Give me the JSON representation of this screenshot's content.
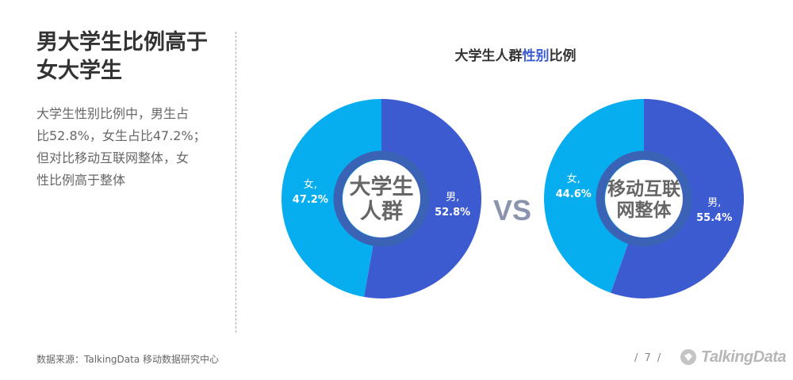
{
  "headline": {
    "line1": "男大学生比例高于",
    "line2": "女大学生"
  },
  "description": [
    "大学生性别比例中，男生占",
    "比52.8%，女生占比47.2%；",
    "但对比移动互联网整体，女",
    "性比例高于整体"
  ],
  "chart_title": {
    "prefix": "大学生人群",
    "highlight": "性别",
    "suffix": "比例"
  },
  "vs_label": "VS",
  "colors": {
    "male": "#3d5bd0",
    "female": "#06aeef",
    "ring": "#3a62b5",
    "vs": "#8c94ad",
    "center_text": "#666666",
    "highlight": "#3a5bd2"
  },
  "chart_data": [
    {
      "type": "pie",
      "center_label": [
        "大学生",
        "人群"
      ],
      "slices": [
        {
          "name": "男",
          "value": 52.8,
          "label": "52.8%"
        },
        {
          "name": "女",
          "value": 47.2,
          "label": "47.2%"
        }
      ]
    },
    {
      "type": "pie",
      "center_label": [
        "移动互联",
        "网整体"
      ],
      "slices": [
        {
          "name": "男",
          "value": 55.4,
          "label": "55.4%"
        },
        {
          "name": "女",
          "value": 44.6,
          "label": "44.6%"
        }
      ]
    }
  ],
  "footer": {
    "source": "数据来源：TalkingData 移动数据研究中心",
    "page": "/ 7 /",
    "brand": "TalkingData"
  }
}
